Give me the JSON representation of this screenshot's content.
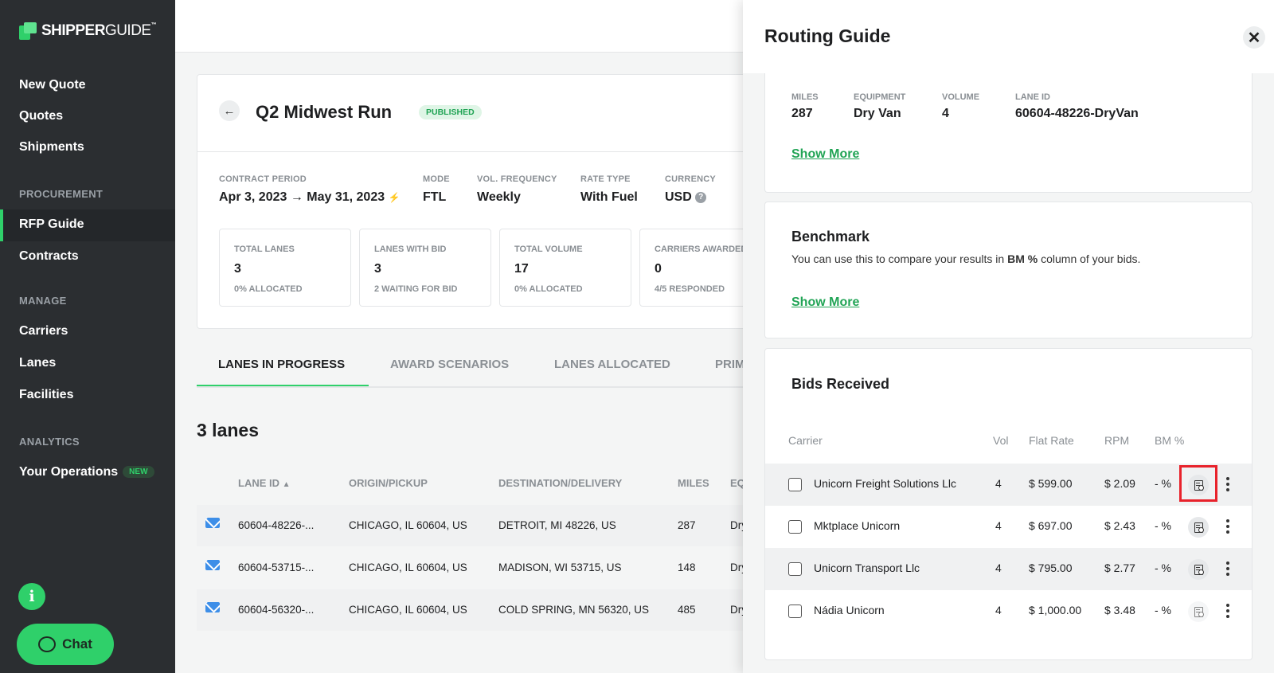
{
  "sidebar": {
    "logo": {
      "bold": "SHIPPER",
      "light": "GUIDE",
      "tm": "™"
    },
    "items": [
      {
        "label": "New Quote"
      },
      {
        "label": "Quotes"
      },
      {
        "label": "Shipments"
      }
    ],
    "sections": [
      {
        "title": "PROCUREMENT",
        "items": [
          {
            "label": "RFP Guide",
            "active": true
          },
          {
            "label": "Contracts"
          }
        ]
      },
      {
        "title": "MANAGE",
        "items": [
          {
            "label": "Carriers"
          },
          {
            "label": "Lanes"
          },
          {
            "label": "Facilities"
          }
        ]
      },
      {
        "title": "ANALYTICS",
        "items": [
          {
            "label": "Your Operations",
            "badge": "NEW"
          }
        ]
      }
    ],
    "info_icon": "i",
    "chat_label": "Chat"
  },
  "rfp": {
    "title": "Q2 Midwest Run",
    "status": "PUBLISHED",
    "meta": [
      {
        "label": "CONTRACT PERIOD",
        "value": "Apr 3, 2023 → May 31, 2023"
      },
      {
        "label": "MODE",
        "value": "FTL"
      },
      {
        "label": "VOL. FREQUENCY",
        "value": "Weekly"
      },
      {
        "label": "RATE TYPE",
        "value": "With Fuel"
      },
      {
        "label": "CURRENCY",
        "value": "USD"
      }
    ],
    "stats": [
      {
        "label": "TOTAL LANES",
        "value": "3",
        "sub": "0% ALLOCATED"
      },
      {
        "label": "LANES WITH BID",
        "value": "3",
        "sub": "2 WAITING FOR BID"
      },
      {
        "label": "TOTAL VOLUME",
        "value": "17",
        "sub": "0% ALLOCATED"
      },
      {
        "label": "CARRIERS AWARDED",
        "value": "0",
        "sub": "4/5 RESPONDED"
      }
    ]
  },
  "tabs": [
    "LANES IN PROGRESS",
    "AWARD SCENARIOS",
    "LANES ALLOCATED",
    "PRIMARY"
  ],
  "lanes": {
    "count_label": "3 lanes",
    "columns": [
      "LANE ID",
      "ORIGIN/PICKUP",
      "DESTINATION/DELIVERY",
      "MILES",
      "EQUIPMENT"
    ],
    "rows": [
      {
        "lane_id": "60604-48226-...",
        "origin": "CHICAGO, IL 60604, US",
        "destination": "DETROIT, MI 48226, US",
        "miles": "287",
        "equipment": "Dry Van"
      },
      {
        "lane_id": "60604-53715-...",
        "origin": "CHICAGO, IL 60604, US",
        "destination": "MADISON, WI 53715, US",
        "miles": "148",
        "equipment": "Dry Van"
      },
      {
        "lane_id": "60604-56320-...",
        "origin": "CHICAGO, IL 60604, US",
        "destination": "COLD SPRING, MN 56320, US",
        "miles": "485",
        "equipment": "Dry Van"
      }
    ]
  },
  "panel": {
    "title": "Routing Guide",
    "lane_details": [
      {
        "label": "MILES",
        "value": "287"
      },
      {
        "label": "EQUIPMENT",
        "value": "Dry Van"
      },
      {
        "label": "VOLUME",
        "value": "4"
      },
      {
        "label": "LANE ID",
        "value": "60604-48226-DryVan"
      }
    ],
    "show_more": "Show More",
    "benchmark": {
      "title": "Benchmark",
      "desc_pre": "You can use this to compare your results in ",
      "desc_bold": "BM %",
      "desc_post": " column of your bids."
    },
    "bids": {
      "title": "Bids Received",
      "columns": [
        "Carrier",
        "Vol",
        "Flat Rate",
        "RPM",
        "BM %"
      ],
      "rows": [
        {
          "carrier": "Unicorn Freight Solutions Llc",
          "vol": "4",
          "flat_rate": "$ 599.00",
          "rpm": "$ 2.09",
          "bm": "- %"
        },
        {
          "carrier": "Mktplace Unicorn",
          "vol": "4",
          "flat_rate": "$ 697.00",
          "rpm": "$ 2.43",
          "bm": "- %"
        },
        {
          "carrier": "Unicorn Transport Llc",
          "vol": "4",
          "flat_rate": "$ 795.00",
          "rpm": "$ 2.77",
          "bm": "- %"
        },
        {
          "carrier": "Nádia Unicorn",
          "vol": "4",
          "flat_rate": "$ 1,000.00",
          "rpm": "$ 3.48",
          "bm": "- %"
        }
      ]
    }
  },
  "colors": {
    "accent": "#2fd06a",
    "sidebar": "#2b2e31",
    "highlight": "#e8222b",
    "mail": "#3d8ee8"
  }
}
